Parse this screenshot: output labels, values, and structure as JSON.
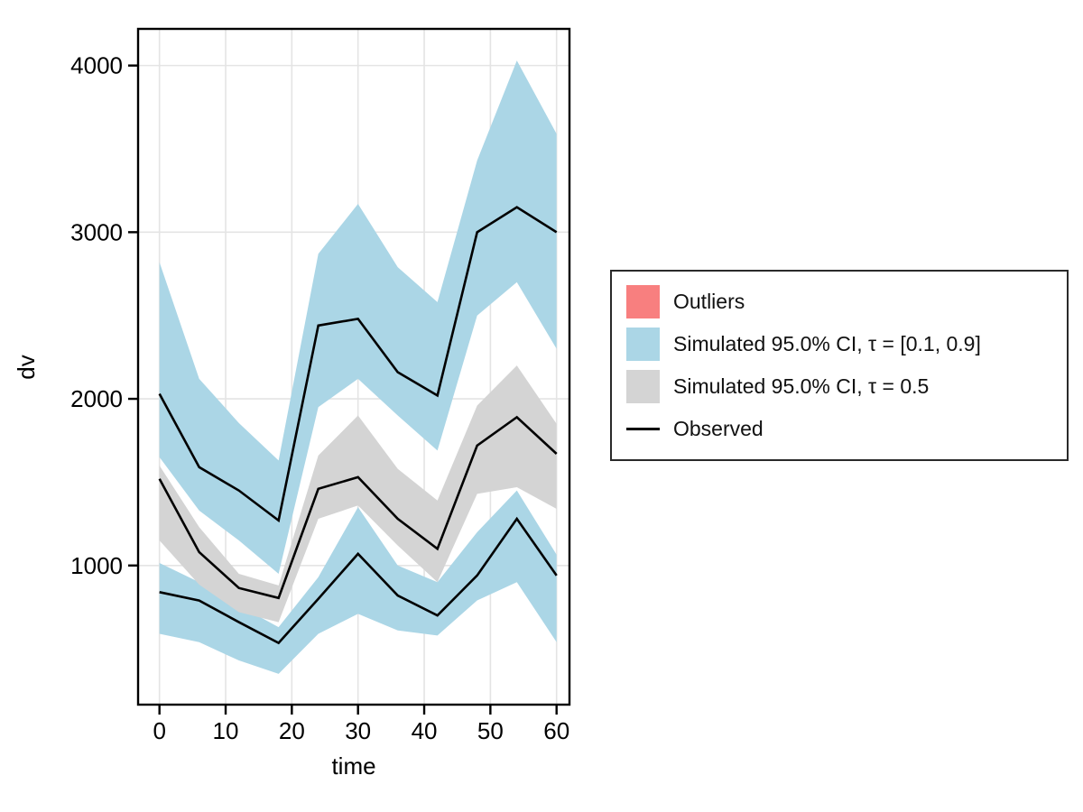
{
  "figure": {
    "background": "#ffffff",
    "grid_color": "#e4e4e4",
    "frame_color": "#000000",
    "tick_color": "#000000"
  },
  "legend": {
    "items": [
      {
        "label": "Outliers",
        "swatch": "square",
        "color": "#f87f7f"
      },
      {
        "label": "Simulated 95.0% CI, τ = [0.1, 0.9]",
        "swatch": "square",
        "color": "#abd6e6"
      },
      {
        "label": "Simulated 95.0% CI, τ = 0.5",
        "swatch": "square",
        "color": "#d4d4d4"
      },
      {
        "label": "Observed",
        "swatch": "line",
        "color": "#000000"
      }
    ]
  },
  "chart_data": {
    "type": "line",
    "title": "",
    "xlabel": "time",
    "ylabel": "dv",
    "xlim": [
      -3.23,
      61.95
    ],
    "ylim": [
      165,
      4220
    ],
    "xticks": [
      0,
      10,
      20,
      30,
      40,
      50,
      60
    ],
    "yticks": [
      1000,
      2000,
      3000,
      4000
    ],
    "grid": true,
    "legend_position": "right",
    "x": [
      0,
      6,
      12,
      18,
      24,
      30,
      36,
      42,
      48,
      54,
      60
    ],
    "bands": [
      {
        "name": "Simulated 95.0% CI, τ = [0.1, 0.9] (upper percentile band)",
        "color": "#abd6e6",
        "hi": [
          2820,
          2120,
          1855,
          1630,
          2870,
          3170,
          2790,
          2580,
          3430,
          4030,
          3590
        ],
        "lo": [
          1650,
          1330,
          1150,
          950,
          1950,
          2120,
          1900,
          1690,
          2500,
          2700,
          2300
        ]
      },
      {
        "name": "Simulated 95.0% CI, τ = [0.1, 0.9] (lower percentile band)",
        "color": "#abd6e6",
        "hi": [
          1015,
          900,
          760,
          630,
          930,
          1350,
          1000,
          900,
          1200,
          1450,
          1065
        ],
        "lo": [
          590,
          540,
          430,
          350,
          590,
          710,
          610,
          580,
          790,
          900,
          540
        ]
      },
      {
        "name": "Simulated 95.0% CI, τ = 0.5 (median band)",
        "color": "#d4d4d4",
        "hi": [
          1600,
          1230,
          950,
          880,
          1660,
          1900,
          1580,
          1390,
          1960,
          2200,
          1850
        ],
        "lo": [
          1150,
          885,
          720,
          660,
          1280,
          1360,
          1120,
          900,
          1430,
          1470,
          1340
        ]
      }
    ],
    "series": [
      {
        "name": "Observed (90th percentile)",
        "color": "#000000",
        "values": [
          2030,
          1590,
          1450,
          1270,
          2440,
          2480,
          2160,
          2020,
          3000,
          3150,
          3000
        ]
      },
      {
        "name": "Observed (median)",
        "color": "#000000",
        "values": [
          1520,
          1080,
          865,
          805,
          1460,
          1530,
          1280,
          1100,
          1720,
          1890,
          1670
        ]
      },
      {
        "name": "Observed (10th percentile)",
        "color": "#000000",
        "values": [
          840,
          790,
          660,
          535,
          800,
          1070,
          820,
          700,
          940,
          1280,
          940
        ]
      }
    ]
  }
}
